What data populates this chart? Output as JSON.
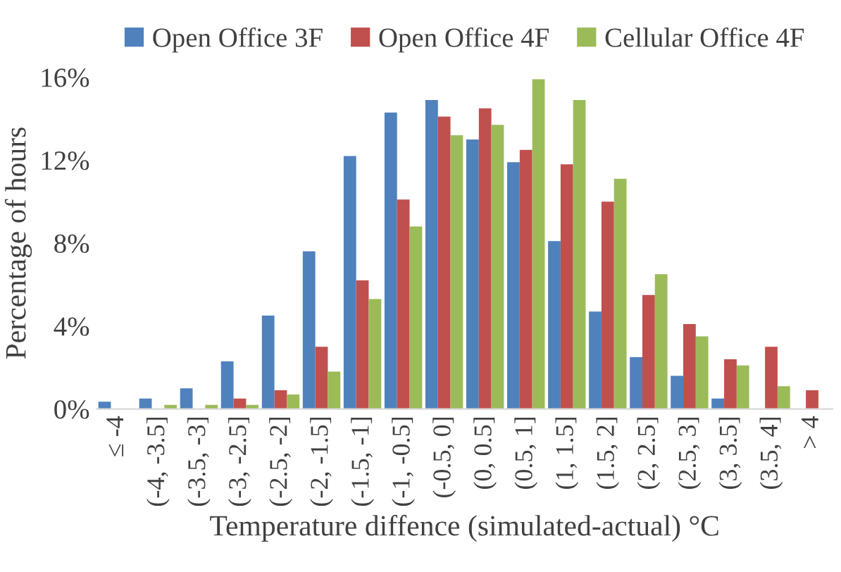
{
  "chart_data": {
    "type": "bar",
    "xlabel": "Temperature diffence (simulated-actual) °C",
    "ylabel": "Percentage of hours",
    "categories": [
      "≤ -4",
      "(-4, -3.5]",
      "(-3.5, -3]",
      "(-3, -2.5]",
      "(-2.5, -2]",
      "(-2, -1.5]",
      "(-1.5, -1]",
      "(-1, -0.5]",
      "(-0.5, 0]",
      "(0, 0.5]",
      "(0.5, 1]",
      "(1, 1.5]",
      "(1.5, 2]",
      "(2, 2.5]",
      "(2.5, 3]",
      "(3, 3.5]",
      "(3.5, 4]",
      "> 4"
    ],
    "series": [
      {
        "name": "Open Office 3F",
        "color": "#4f81bd",
        "values": [
          0.35,
          0.5,
          1.0,
          2.3,
          4.5,
          7.6,
          12.2,
          14.3,
          14.9,
          13.0,
          11.9,
          8.1,
          4.7,
          2.5,
          1.6,
          0.5,
          0,
          0
        ]
      },
      {
        "name": "Open Office 4F",
        "color": "#c0504d",
        "values": [
          0,
          0,
          0,
          0.5,
          0.9,
          3.0,
          6.2,
          10.1,
          14.1,
          14.5,
          12.5,
          11.8,
          10.0,
          5.5,
          4.1,
          2.4,
          3.0,
          0.9
        ]
      },
      {
        "name": "Cellular Office 4F",
        "color": "#9bbb59",
        "values": [
          0,
          0.2,
          0.2,
          0.2,
          0.7,
          1.8,
          5.3,
          8.8,
          13.2,
          13.7,
          15.9,
          14.9,
          11.1,
          6.5,
          3.5,
          2.1,
          1.1,
          0
        ]
      }
    ],
    "ylim": [
      0,
      16
    ],
    "yticks": [
      {
        "value": 0,
        "label": "0%"
      },
      {
        "value": 4,
        "label": "4%"
      },
      {
        "value": 8,
        "label": "8%"
      },
      {
        "value": 12,
        "label": "12%"
      },
      {
        "value": 16,
        "label": "16%"
      }
    ],
    "grid": false,
    "legend": "top"
  }
}
